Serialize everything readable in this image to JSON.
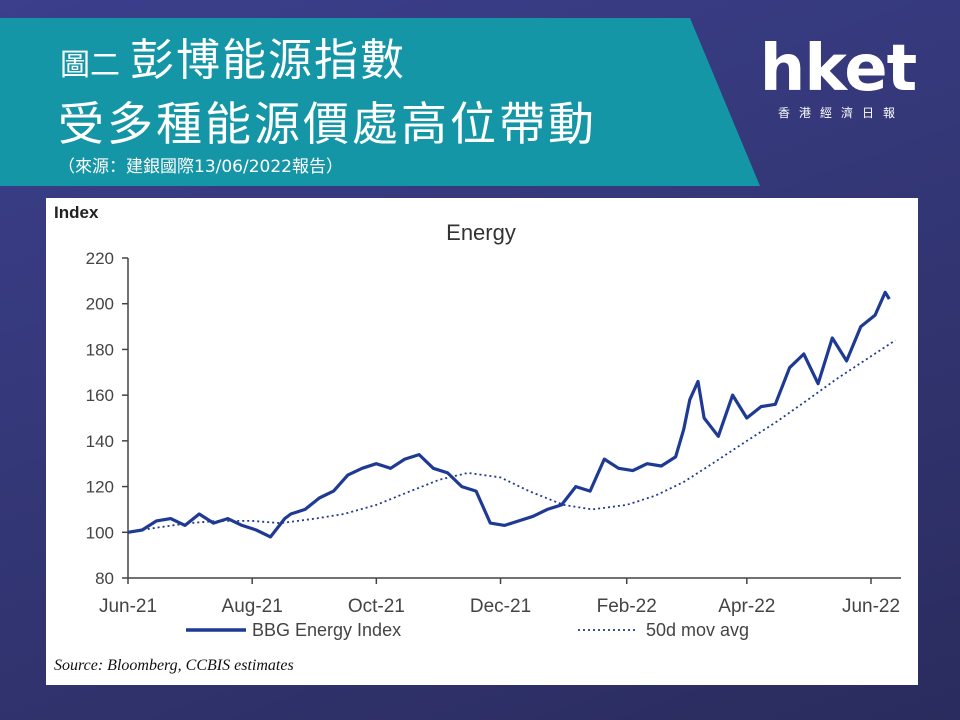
{
  "header": {
    "title_prefix": "圖二",
    "title_main": "彭博能源指數",
    "title_line2": "受多種能源價處高位帶動",
    "source_note": "（來源：建銀國際13/06/2022報告）"
  },
  "logo": {
    "word": "hket",
    "subtitle": "香港經濟日報"
  },
  "chart_data": {
    "type": "line",
    "title": "Energy",
    "ylabel": "Index",
    "xlabel": "",
    "ylim": [
      80,
      220
    ],
    "yticks": [
      80,
      100,
      120,
      140,
      160,
      180,
      200,
      220
    ],
    "grid": false,
    "legend_position": "bottom",
    "x_tick_labels": [
      "Jun-21",
      "Aug-21",
      "Oct-21",
      "Dec-21",
      "Feb-22",
      "Apr-22",
      "Jun-22"
    ],
    "x_tick_dates": [
      "2021-06-01",
      "2021-08-01",
      "2021-10-01",
      "2021-12-01",
      "2022-02-01",
      "2022-04-01",
      "2022-06-01"
    ],
    "source": "Source: Bloomberg, CCBIS estimates",
    "series": [
      {
        "name": "BBG Energy Index",
        "color": "#1f3a93",
        "style": "solid",
        "x": [
          "2021-06-01",
          "2021-06-08",
          "2021-06-15",
          "2021-06-22",
          "2021-06-29",
          "2021-07-06",
          "2021-07-13",
          "2021-07-20",
          "2021-07-27",
          "2021-08-03",
          "2021-08-10",
          "2021-08-17",
          "2021-08-20",
          "2021-08-27",
          "2021-09-03",
          "2021-09-10",
          "2021-09-17",
          "2021-09-24",
          "2021-10-01",
          "2021-10-08",
          "2021-10-15",
          "2021-10-22",
          "2021-10-29",
          "2021-11-05",
          "2021-11-12",
          "2021-11-19",
          "2021-11-26",
          "2021-12-03",
          "2021-12-10",
          "2021-12-17",
          "2021-12-24",
          "2021-12-31",
          "2022-01-07",
          "2022-01-14",
          "2022-01-21",
          "2022-01-28",
          "2022-02-04",
          "2022-02-11",
          "2022-02-18",
          "2022-02-25",
          "2022-03-01",
          "2022-03-04",
          "2022-03-08",
          "2022-03-11",
          "2022-03-18",
          "2022-03-25",
          "2022-04-01",
          "2022-04-08",
          "2022-04-15",
          "2022-04-22",
          "2022-04-29",
          "2022-05-06",
          "2022-05-13",
          "2022-05-20",
          "2022-05-27",
          "2022-06-03",
          "2022-06-08",
          "2022-06-10"
        ],
        "y": [
          100,
          101,
          105,
          106,
          103,
          108,
          104,
          106,
          103,
          101,
          98,
          106,
          108,
          110,
          115,
          118,
          125,
          128,
          130,
          128,
          132,
          134,
          128,
          126,
          120,
          118,
          104,
          103,
          105,
          107,
          110,
          112,
          120,
          118,
          132,
          128,
          127,
          130,
          129,
          133,
          145,
          158,
          166,
          150,
          142,
          160,
          150,
          155,
          156,
          172,
          178,
          165,
          185,
          175,
          190,
          195,
          205,
          202
        ]
      },
      {
        "name": "50d mov avg",
        "color": "#1f3a93",
        "style": "dotted",
        "x": [
          "2021-06-01",
          "2021-06-15",
          "2021-07-01",
          "2021-07-15",
          "2021-08-01",
          "2021-08-15",
          "2021-09-01",
          "2021-09-15",
          "2021-10-01",
          "2021-10-15",
          "2021-11-01",
          "2021-11-15",
          "2021-12-01",
          "2021-12-15",
          "2022-01-01",
          "2022-01-15",
          "2022-02-01",
          "2022-02-15",
          "2022-03-01",
          "2022-03-15",
          "2022-04-01",
          "2022-04-15",
          "2022-05-01",
          "2022-05-15",
          "2022-06-01",
          "2022-06-13"
        ],
        "y": [
          100,
          102,
          104,
          105,
          105,
          104,
          106,
          108,
          112,
          117,
          123,
          126,
          124,
          118,
          112,
          110,
          112,
          116,
          122,
          130,
          140,
          148,
          158,
          167,
          177,
          184
        ]
      }
    ]
  }
}
